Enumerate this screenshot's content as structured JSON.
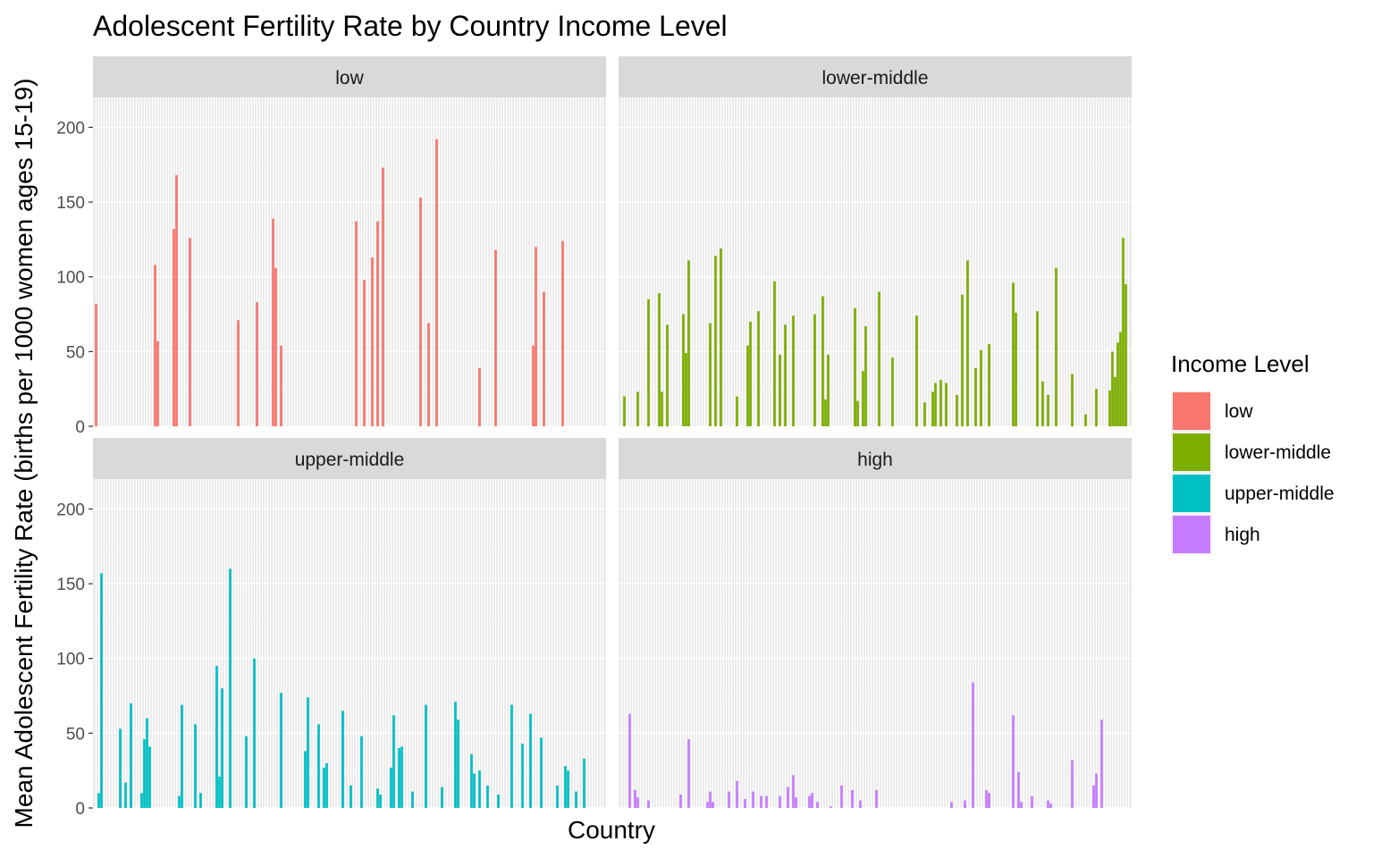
{
  "chart_data": {
    "type": "bar",
    "title": "Adolescent Fertility Rate by Country Income Level",
    "xlabel": "Country",
    "ylabel": "Mean Adolescent Fertility Rate (births per 1000 women ages 15-19)",
    "ylim": [
      0,
      220
    ],
    "yticks": [
      0,
      50,
      100,
      150,
      200
    ],
    "grid": true,
    "facet_layout": "2x2",
    "n_categories": 190,
    "legend": {
      "title": "Income Level",
      "position": "right",
      "entries": [
        {
          "label": "low",
          "color": "#F8766D"
        },
        {
          "label": "lower-middle",
          "color": "#7CAE00"
        },
        {
          "label": "upper-middle",
          "color": "#00BFC4"
        },
        {
          "label": "high",
          "color": "#C77CFF"
        }
      ]
    },
    "series": [
      {
        "name": "low",
        "color": "#F8766D",
        "points": [
          {
            "i": 0,
            "v": 82
          },
          {
            "i": 22,
            "v": 108
          },
          {
            "i": 23,
            "v": 57
          },
          {
            "i": 29,
            "v": 132
          },
          {
            "i": 30,
            "v": 168
          },
          {
            "i": 35,
            "v": 126
          },
          {
            "i": 53,
            "v": 71
          },
          {
            "i": 60,
            "v": 83
          },
          {
            "i": 66,
            "v": 139
          },
          {
            "i": 67,
            "v": 106
          },
          {
            "i": 69,
            "v": 54
          },
          {
            "i": 97,
            "v": 137
          },
          {
            "i": 100,
            "v": 98
          },
          {
            "i": 103,
            "v": 113
          },
          {
            "i": 105,
            "v": 137
          },
          {
            "i": 107,
            "v": 173
          },
          {
            "i": 121,
            "v": 153
          },
          {
            "i": 124,
            "v": 69
          },
          {
            "i": 127,
            "v": 192
          },
          {
            "i": 143,
            "v": 39
          },
          {
            "i": 149,
            "v": 118
          },
          {
            "i": 163,
            "v": 54
          },
          {
            "i": 164,
            "v": 120
          },
          {
            "i": 167,
            "v": 90
          },
          {
            "i": 174,
            "v": 124
          }
        ]
      },
      {
        "name": "lower-middle",
        "color": "#7CAE00",
        "points": [
          {
            "i": 1,
            "v": 20
          },
          {
            "i": 6,
            "v": 23
          },
          {
            "i": 10,
            "v": 85
          },
          {
            "i": 14,
            "v": 89
          },
          {
            "i": 15,
            "v": 23
          },
          {
            "i": 17,
            "v": 68
          },
          {
            "i": 23,
            "v": 75
          },
          {
            "i": 24,
            "v": 49
          },
          {
            "i": 25,
            "v": 111
          },
          {
            "i": 33,
            "v": 69
          },
          {
            "i": 35,
            "v": 114
          },
          {
            "i": 37,
            "v": 119
          },
          {
            "i": 43,
            "v": 20
          },
          {
            "i": 47,
            "v": 54
          },
          {
            "i": 48,
            "v": 70
          },
          {
            "i": 51,
            "v": 77
          },
          {
            "i": 57,
            "v": 97
          },
          {
            "i": 59,
            "v": 48
          },
          {
            "i": 61,
            "v": 68
          },
          {
            "i": 64,
            "v": 74
          },
          {
            "i": 72,
            "v": 75
          },
          {
            "i": 75,
            "v": 87
          },
          {
            "i": 76,
            "v": 18
          },
          {
            "i": 77,
            "v": 48
          },
          {
            "i": 87,
            "v": 79
          },
          {
            "i": 88,
            "v": 17
          },
          {
            "i": 90,
            "v": 37
          },
          {
            "i": 91,
            "v": 67
          },
          {
            "i": 96,
            "v": 90
          },
          {
            "i": 101,
            "v": 46
          },
          {
            "i": 110,
            "v": 74
          },
          {
            "i": 113,
            "v": 16
          },
          {
            "i": 116,
            "v": 23
          },
          {
            "i": 117,
            "v": 29
          },
          {
            "i": 119,
            "v": 31
          },
          {
            "i": 121,
            "v": 29
          },
          {
            "i": 125,
            "v": 21
          },
          {
            "i": 127,
            "v": 88
          },
          {
            "i": 129,
            "v": 111
          },
          {
            "i": 132,
            "v": 39
          },
          {
            "i": 134,
            "v": 51
          },
          {
            "i": 137,
            "v": 55
          },
          {
            "i": 146,
            "v": 96
          },
          {
            "i": 147,
            "v": 76
          },
          {
            "i": 155,
            "v": 77
          },
          {
            "i": 157,
            "v": 30
          },
          {
            "i": 159,
            "v": 21
          },
          {
            "i": 162,
            "v": 106
          },
          {
            "i": 168,
            "v": 35
          },
          {
            "i": 173,
            "v": 8
          },
          {
            "i": 177,
            "v": 25
          },
          {
            "i": 182,
            "v": 24
          },
          {
            "i": 183,
            "v": 50
          },
          {
            "i": 184,
            "v": 33
          },
          {
            "i": 185,
            "v": 56
          },
          {
            "i": 186,
            "v": 63
          },
          {
            "i": 187,
            "v": 126
          },
          {
            "i": 188,
            "v": 95
          }
        ]
      },
      {
        "name": "upper-middle",
        "color": "#00BFC4",
        "points": [
          {
            "i": 1,
            "v": 10
          },
          {
            "i": 2,
            "v": 157
          },
          {
            "i": 9,
            "v": 53
          },
          {
            "i": 11,
            "v": 17
          },
          {
            "i": 13,
            "v": 70
          },
          {
            "i": 17,
            "v": 10
          },
          {
            "i": 18,
            "v": 46
          },
          {
            "i": 19,
            "v": 60
          },
          {
            "i": 20,
            "v": 41
          },
          {
            "i": 31,
            "v": 8
          },
          {
            "i": 32,
            "v": 69
          },
          {
            "i": 37,
            "v": 56
          },
          {
            "i": 39,
            "v": 10
          },
          {
            "i": 45,
            "v": 95
          },
          {
            "i": 46,
            "v": 21
          },
          {
            "i": 47,
            "v": 80
          },
          {
            "i": 50,
            "v": 160
          },
          {
            "i": 56,
            "v": 48
          },
          {
            "i": 59,
            "v": 100
          },
          {
            "i": 69,
            "v": 77
          },
          {
            "i": 78,
            "v": 38
          },
          {
            "i": 79,
            "v": 74
          },
          {
            "i": 83,
            "v": 56
          },
          {
            "i": 85,
            "v": 27
          },
          {
            "i": 86,
            "v": 30
          },
          {
            "i": 92,
            "v": 65
          },
          {
            "i": 95,
            "v": 15
          },
          {
            "i": 99,
            "v": 48
          },
          {
            "i": 105,
            "v": 13
          },
          {
            "i": 106,
            "v": 9
          },
          {
            "i": 110,
            "v": 27
          },
          {
            "i": 111,
            "v": 62
          },
          {
            "i": 113,
            "v": 40
          },
          {
            "i": 114,
            "v": 41
          },
          {
            "i": 118,
            "v": 11
          },
          {
            "i": 123,
            "v": 69
          },
          {
            "i": 129,
            "v": 14
          },
          {
            "i": 134,
            "v": 71
          },
          {
            "i": 135,
            "v": 59
          },
          {
            "i": 140,
            "v": 36
          },
          {
            "i": 141,
            "v": 23
          },
          {
            "i": 143,
            "v": 25
          },
          {
            "i": 146,
            "v": 15
          },
          {
            "i": 150,
            "v": 9
          },
          {
            "i": 155,
            "v": 69
          },
          {
            "i": 159,
            "v": 43
          },
          {
            "i": 162,
            "v": 63
          },
          {
            "i": 166,
            "v": 47
          },
          {
            "i": 172,
            "v": 15
          },
          {
            "i": 175,
            "v": 28
          },
          {
            "i": 176,
            "v": 25
          },
          {
            "i": 179,
            "v": 11
          },
          {
            "i": 182,
            "v": 33
          }
        ]
      },
      {
        "name": "high",
        "color": "#C77CFF",
        "points": [
          {
            "i": 3,
            "v": 63
          },
          {
            "i": 5,
            "v": 12
          },
          {
            "i": 6,
            "v": 7
          },
          {
            "i": 10,
            "v": 5
          },
          {
            "i": 22,
            "v": 9
          },
          {
            "i": 25,
            "v": 46
          },
          {
            "i": 32,
            "v": 4
          },
          {
            "i": 33,
            "v": 11
          },
          {
            "i": 34,
            "v": 4
          },
          {
            "i": 40,
            "v": 11
          },
          {
            "i": 43,
            "v": 18
          },
          {
            "i": 46,
            "v": 6
          },
          {
            "i": 49,
            "v": 11
          },
          {
            "i": 52,
            "v": 8
          },
          {
            "i": 54,
            "v": 8
          },
          {
            "i": 59,
            "v": 8
          },
          {
            "i": 62,
            "v": 14
          },
          {
            "i": 64,
            "v": 22
          },
          {
            "i": 65,
            "v": 7
          },
          {
            "i": 70,
            "v": 8
          },
          {
            "i": 71,
            "v": 10
          },
          {
            "i": 73,
            "v": 4
          },
          {
            "i": 78,
            "v": 1
          },
          {
            "i": 82,
            "v": 15
          },
          {
            "i": 86,
            "v": 12
          },
          {
            "i": 89,
            "v": 5
          },
          {
            "i": 95,
            "v": 12
          },
          {
            "i": 123,
            "v": 4
          },
          {
            "i": 128,
            "v": 5
          },
          {
            "i": 131,
            "v": 84
          },
          {
            "i": 136,
            "v": 12
          },
          {
            "i": 137,
            "v": 10
          },
          {
            "i": 146,
            "v": 62
          },
          {
            "i": 148,
            "v": 24
          },
          {
            "i": 149,
            "v": 4
          },
          {
            "i": 153,
            "v": 8
          },
          {
            "i": 159,
            "v": 5
          },
          {
            "i": 160,
            "v": 3
          },
          {
            "i": 168,
            "v": 32
          },
          {
            "i": 176,
            "v": 15
          },
          {
            "i": 177,
            "v": 23
          },
          {
            "i": 179,
            "v": 59
          }
        ]
      }
    ]
  }
}
